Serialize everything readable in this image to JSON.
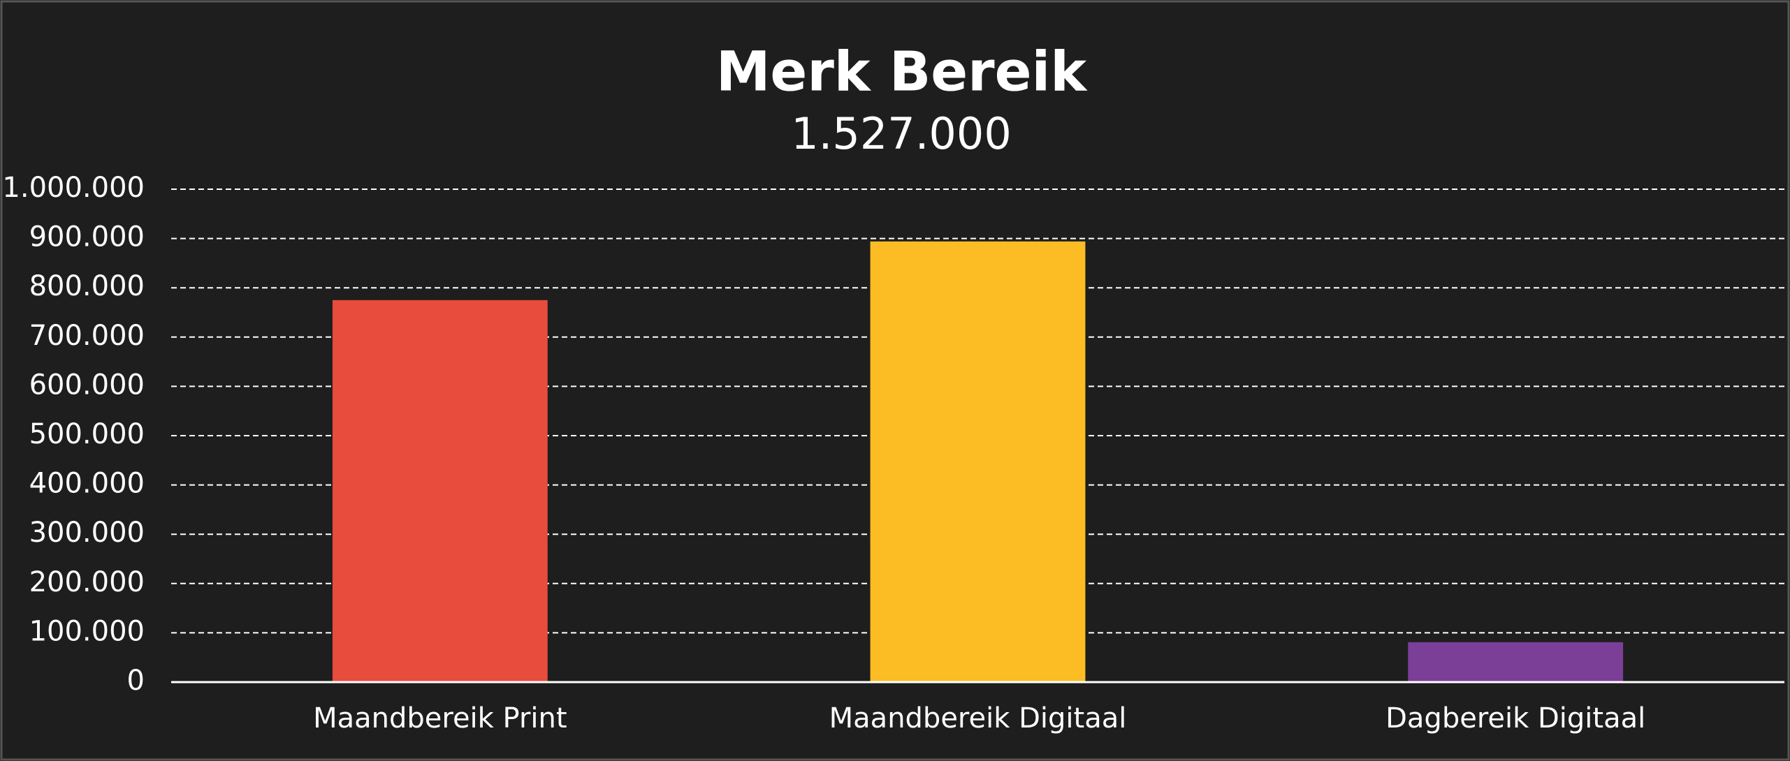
{
  "chart_data": {
    "type": "bar",
    "title": "Merk Bereik",
    "subtitle": "1.527.000",
    "categories": [
      "Maandbereik Print",
      "Maandbereik Digitaal",
      "Dagbereik Digitaal"
    ],
    "values": [
      775000,
      894000,
      81000
    ],
    "colors": [
      "#e74c3c",
      "#fbbc24",
      "#7b3f98"
    ],
    "ylim": [
      0,
      1000000
    ],
    "yticks": [
      0,
      {
        "value": 100000,
        "label": "100.000"
      },
      {
        "value": 200000,
        "label": "200.000"
      },
      {
        "value": 300000,
        "label": "300.000"
      },
      {
        "value": 400000,
        "label": "400.000"
      },
      {
        "value": 500000,
        "label": "500.000"
      },
      {
        "value": 600000,
        "label": "600.000"
      },
      {
        "value": 700000,
        "label": "700.000"
      },
      {
        "value": 800000,
        "label": "800.000"
      },
      {
        "value": 900000,
        "label": "900.000"
      },
      {
        "value": 1000000,
        "label": "1.000.000"
      }
    ],
    "grid": true
  }
}
